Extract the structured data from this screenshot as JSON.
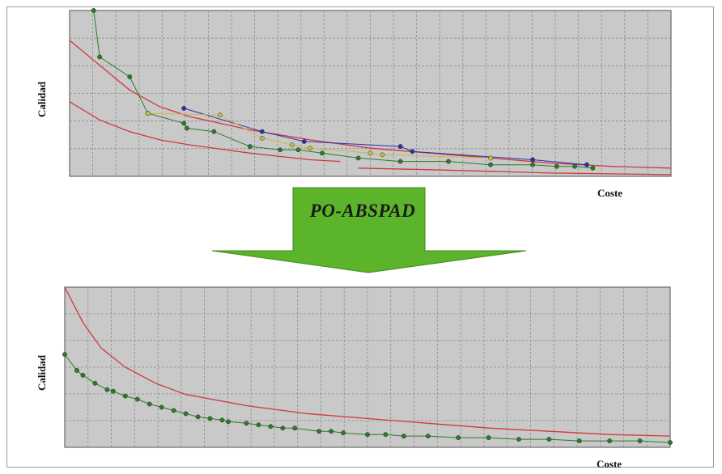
{
  "arrow_label": "PO-ABSPAD",
  "colors": {
    "plot_bg": "#c9c9c9",
    "grid": "#8e8e8e",
    "red_curve": "#d0393e",
    "green_series": "#2e7a2a",
    "blue_series": "#2f2fb0",
    "yellow_series": "#c9b84a",
    "arrow": "#5bb42a"
  },
  "chart_data": [
    {
      "type": "scatter",
      "title": "",
      "xlabel": "Coste",
      "ylabel": "Calidad",
      "xlim": [
        0,
        100
      ],
      "ylim": [
        0,
        100
      ],
      "grid": true,
      "series": [
        {
          "kind": "curve",
          "color": "red",
          "x": [
            0,
            5,
            10,
            15,
            20,
            30,
            40,
            50,
            60,
            70,
            80,
            90,
            100
          ],
          "y": [
            82,
            67,
            52,
            42,
            36,
            28,
            22,
            17,
            14,
            11,
            8,
            6,
            5
          ]
        },
        {
          "kind": "curve",
          "color": "red",
          "x": [
            0,
            5,
            10,
            15,
            20,
            30,
            40,
            45
          ],
          "y": [
            45,
            34,
            27,
            22,
            19,
            14,
            10,
            9
          ]
        },
        {
          "kind": "curve",
          "color": "red",
          "x": [
            48,
            60,
            70,
            80,
            90,
            100
          ],
          "y": [
            5,
            4,
            3,
            2,
            1.5,
            1
          ]
        },
        {
          "kind": "markers",
          "color": "green",
          "x": [
            4,
            5,
            10,
            13,
            19,
            19.5,
            24,
            30,
            35,
            38,
            42,
            48,
            55,
            63,
            70,
            77,
            81,
            84,
            87
          ],
          "y": [
            100,
            72,
            60,
            38,
            32,
            29,
            27,
            18,
            16,
            16,
            14,
            11,
            9,
            9,
            7,
            7,
            6,
            6,
            5
          ]
        },
        {
          "kind": "markers",
          "color": "blue",
          "x": [
            19,
            32,
            39,
            55,
            57,
            77,
            86
          ],
          "y": [
            41,
            27,
            21,
            18,
            15,
            10,
            7
          ]
        },
        {
          "kind": "markers",
          "color": "yellow",
          "x": [
            13,
            25,
            32,
            37,
            40,
            50,
            52,
            70
          ],
          "y": [
            38,
            37,
            23,
            19,
            17,
            14,
            13,
            11
          ]
        }
      ]
    },
    {
      "type": "scatter",
      "title": "",
      "xlabel": "Coste",
      "ylabel": "Calidad",
      "xlim": [
        0,
        100
      ],
      "ylim": [
        0,
        100
      ],
      "grid": true,
      "series": [
        {
          "kind": "curve",
          "color": "red",
          "x": [
            0,
            3,
            6,
            10,
            15,
            20,
            30,
            40,
            50,
            60,
            70,
            80,
            90,
            100
          ],
          "y": [
            100,
            78,
            62,
            50,
            40,
            33,
            26,
            21,
            18,
            15,
            12,
            10,
            8,
            7
          ]
        },
        {
          "kind": "markers",
          "color": "green",
          "x": [
            0,
            2,
            3,
            5,
            7,
            8,
            10,
            12,
            14,
            16,
            18,
            20,
            22,
            24,
            26,
            27,
            30,
            32,
            34,
            36,
            38,
            42,
            44,
            46,
            50,
            53,
            56,
            60,
            65,
            70,
            75,
            80,
            85,
            90,
            95,
            100
          ],
          "y": [
            58,
            48,
            45,
            40,
            36,
            35,
            32,
            30,
            27,
            25,
            23,
            21,
            19,
            18,
            17,
            16,
            15,
            14,
            13,
            12,
            12,
            10,
            10,
            9,
            8,
            8,
            7,
            7,
            6,
            6,
            5,
            5,
            4,
            4,
            4,
            3
          ]
        }
      ]
    }
  ]
}
